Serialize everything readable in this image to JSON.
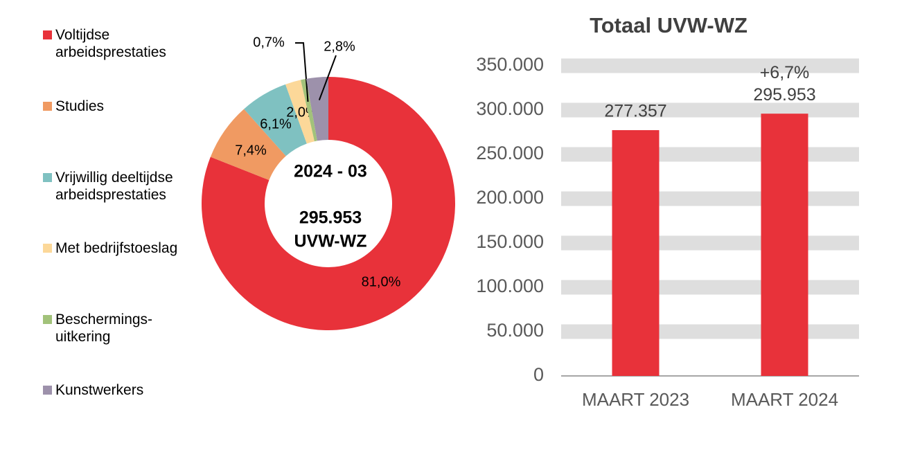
{
  "chart_data": [
    {
      "type": "donut",
      "categories": [
        "Voltijdse\narbeidsprestaties",
        "Studies",
        "Vrijwillig deeltijdse\narbeidsprestaties",
        "Met bedrijfstoeslag",
        "Beschermings-\nuitkering",
        "Kunstwerkers"
      ],
      "values": [
        81.0,
        7.4,
        6.1,
        2.0,
        0.7,
        2.8
      ],
      "value_labels": [
        "81,0%",
        "7,4%",
        "6,1%",
        "2,0%",
        "0,7%",
        "2,8%"
      ],
      "colors": [
        "#e8323a",
        "#f09a62",
        "#7fc1c1",
        "#fcd899",
        "#a2c27a",
        "#9d91ab"
      ],
      "center_label": [
        "2024 - 03",
        "295.953",
        "UVW-WZ"
      ]
    },
    {
      "type": "bar",
      "title": "Totaal UVW-WZ",
      "categories": [
        "MAART 2023",
        "MAART 2024"
      ],
      "values": [
        277357,
        295953
      ],
      "value_labels": [
        "277.357",
        "295.953"
      ],
      "color": "#e8323a",
      "annotation": "+6,7%",
      "ylim": [
        0,
        350000
      ],
      "yticks": [
        0,
        {
          "value": 50000,
          "label": "50.000"
        },
        {
          "value": 100000,
          "label": "100.000"
        },
        {
          "value": 150000,
          "label": "150.000"
        },
        {
          "value": 200000,
          "label": "200.000"
        },
        {
          "value": 250000,
          "label": "250.000"
        },
        {
          "value": 300000,
          "label": "300.000"
        },
        {
          "value": 350000,
          "label": "350.000"
        }
      ],
      "grid": true
    }
  ]
}
